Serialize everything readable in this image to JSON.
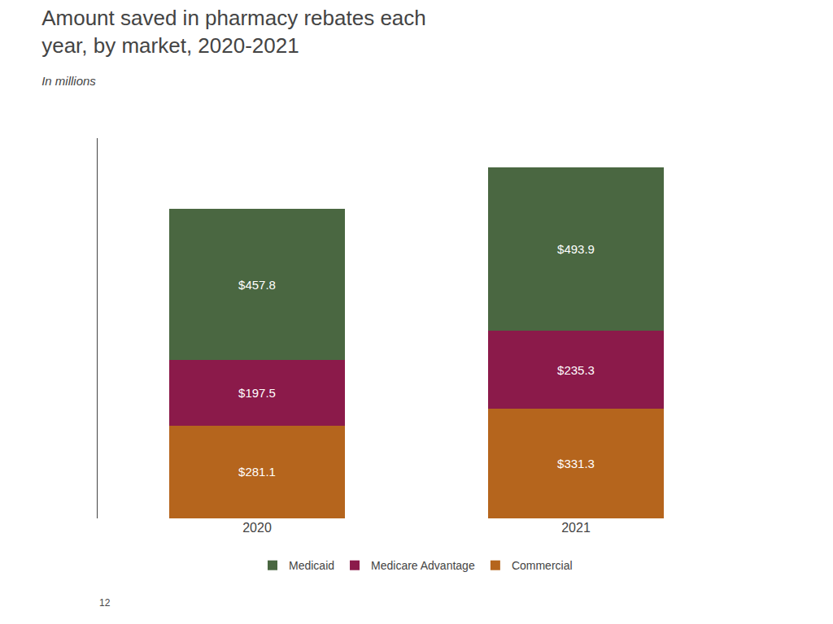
{
  "chart_data": {
    "type": "bar",
    "stacked": true,
    "title": "Amount saved in pharmacy rebates each\nyear, by market, 2020-2021",
    "subtitle": "In millions",
    "annotations": [
      "12"
    ],
    "categories": [
      "2020",
      "2021"
    ],
    "series": [
      {
        "name": "Commercial",
        "color": "#B5651D",
        "values": [
          281.1,
          331.3
        ],
        "value_labels": [
          "$281.1",
          "$331.3"
        ]
      },
      {
        "name": "Medicare Advantage",
        "color": "#8B1A4A",
        "values": [
          197.5,
          235.3
        ],
        "value_labels": [
          "$197.5",
          "$235.3"
        ]
      },
      {
        "name": "Medicaid",
        "color": "#4A6741",
        "values": [
          457.8,
          493.9
        ],
        "value_labels": [
          "$457.8",
          "$493.9"
        ]
      }
    ],
    "ylim": [
      0,
      1150
    ],
    "data_labels": true,
    "tick_labels": "x",
    "grid": false,
    "legend": "bottom"
  }
}
